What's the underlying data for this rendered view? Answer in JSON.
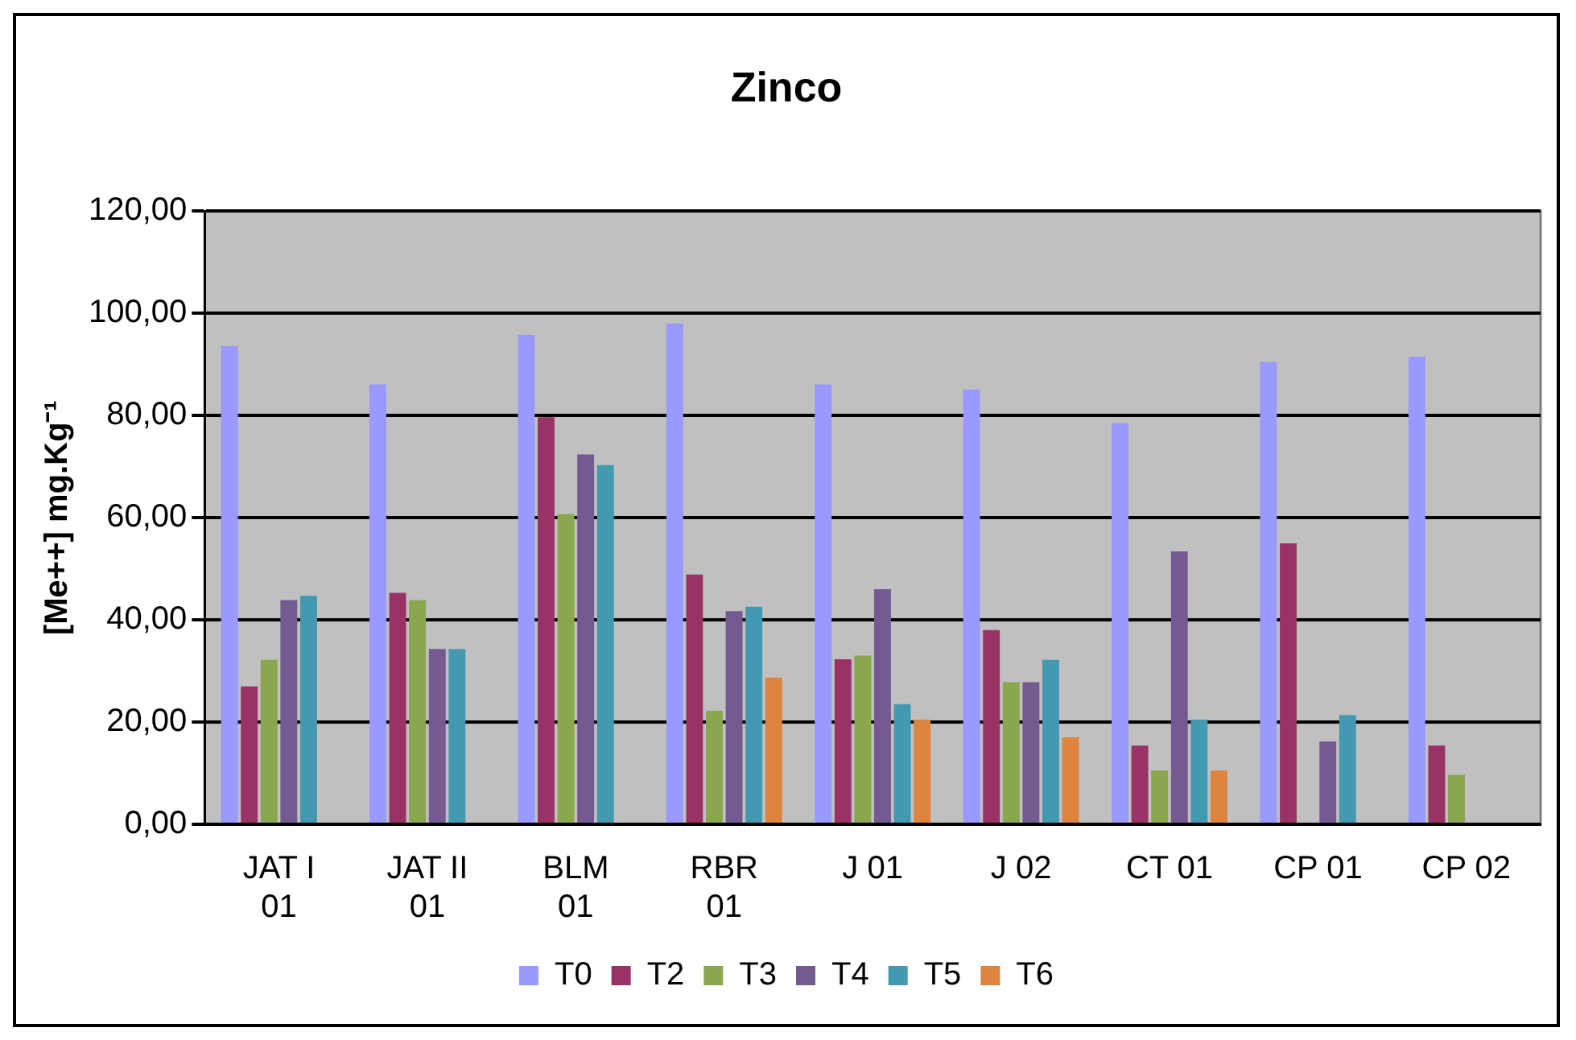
{
  "chart_data": {
    "type": "bar",
    "title": "Zinco",
    "ylabel": "[Me++] mg.Kg⁻¹",
    "categories": [
      "JAT I 01",
      "JAT II 01",
      "BLM 01",
      "RBR 01",
      "J 01",
      "J 02",
      "CT 01",
      "CP 01",
      "CP 02"
    ],
    "series": [
      {
        "name": "T0",
        "color": "#9999ff",
        "values": [
          93.6,
          86.1,
          95.8,
          98.0,
          86.1,
          85.1,
          78.5,
          90.5,
          91.5
        ]
      },
      {
        "name": "T2",
        "color": "#993366",
        "values": [
          27.0,
          45.3,
          79.7,
          48.9,
          32.3,
          38.0,
          15.4,
          55.0,
          15.4
        ]
      },
      {
        "name": "T3",
        "color": "#8aa64e",
        "values": [
          32.2,
          43.9,
          60.7,
          22.2,
          33.0,
          27.8,
          10.5,
          null,
          9.7
        ]
      },
      {
        "name": "T4",
        "color": "#735a91",
        "values": [
          43.9,
          34.3,
          72.4,
          41.7,
          46.0,
          27.8,
          53.4,
          16.2,
          null
        ]
      },
      {
        "name": "T5",
        "color": "#4399b0",
        "values": [
          44.7,
          34.3,
          70.3,
          42.6,
          23.5,
          32.2,
          20.5,
          21.4,
          null
        ]
      },
      {
        "name": "T6",
        "color": "#dd843f",
        "values": [
          null,
          null,
          null,
          28.7,
          20.5,
          17.0,
          10.5,
          null,
          null
        ]
      }
    ],
    "ylim": [
      0,
      120
    ],
    "yticks": [
      {
        "value": 0,
        "label": "0,00"
      },
      {
        "value": 20,
        "label": "20,00"
      },
      {
        "value": 40,
        "label": "40,00"
      },
      {
        "value": 60,
        "label": "60,00"
      },
      {
        "value": 80,
        "label": "80,00"
      },
      {
        "value": 100,
        "label": "100,00"
      },
      {
        "value": 120,
        "label": "120,00"
      }
    ],
    "grid": "y",
    "legend": "bottom"
  }
}
